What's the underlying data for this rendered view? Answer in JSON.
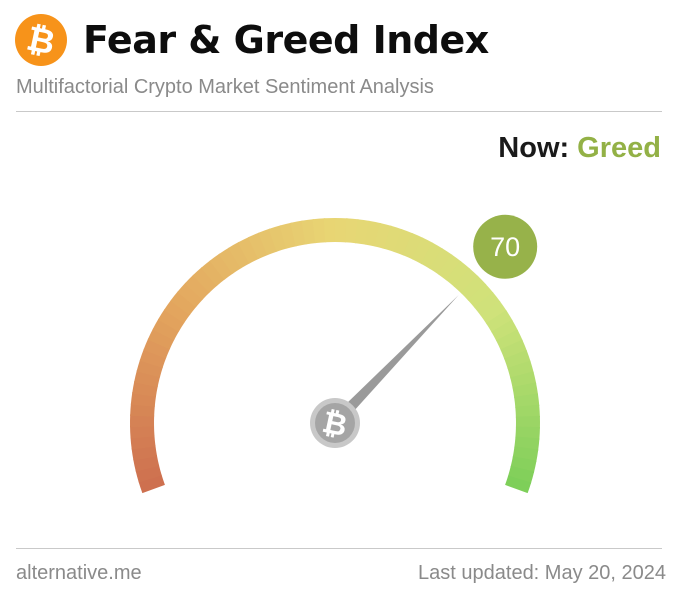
{
  "header": {
    "title": "Fear & Greed Index",
    "subtitle": "Multifactorial Crypto Market Sentiment Analysis",
    "logo_icon": "bitcoin-icon",
    "logo_color": "#f7931a"
  },
  "status": {
    "now_label": "Now:",
    "classification": "Greed",
    "classification_color": "#93b146"
  },
  "chart_data": {
    "type": "gauge",
    "value": 70,
    "range": [
      0,
      100
    ],
    "value_badge_color": "#97b24a",
    "gradient_colors": [
      "#cd6e4f",
      "#e3a55e",
      "#e8d674",
      "#cfe27a",
      "#7cce58"
    ],
    "center_icon": "bitcoin-icon"
  },
  "footer": {
    "source": "alternative.me",
    "last_updated": "Last updated: May 20, 2024"
  }
}
